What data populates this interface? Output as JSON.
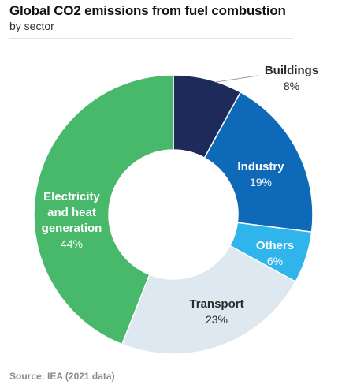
{
  "title": "Global CO2 emissions from fuel combustion",
  "subtitle": "by sector",
  "source": "Source: IEA (2021 data)",
  "chart_data": {
    "type": "pie",
    "donut": true,
    "title": "Global CO2 emissions from fuel combustion",
    "subtitle": "by sector",
    "unit": "%",
    "legend": "none",
    "slices": [
      {
        "label": "Buildings",
        "lines": [
          "Buildings"
        ],
        "value": 8,
        "display": "8%",
        "color": "#1e2a5a",
        "label_color": "#2b2b2b"
      },
      {
        "label": "Industry",
        "lines": [
          "Industry"
        ],
        "value": 19,
        "display": "19%",
        "color": "#0e69b8",
        "label_color": "#ffffff"
      },
      {
        "label": "Others",
        "lines": [
          "Others"
        ],
        "value": 6,
        "display": "6%",
        "color": "#2fb4ec",
        "label_color": "#ffffff"
      },
      {
        "label": "Transport",
        "lines": [
          "Transport"
        ],
        "value": 23,
        "display": "23%",
        "color": "#dde8f0",
        "label_color": "#2b2b2b"
      },
      {
        "label": "Electricity and heat generation",
        "lines": [
          "Electricity",
          "and heat",
          "generation"
        ],
        "value": 44,
        "display": "44%",
        "color": "#48b96a",
        "label_color": "#ffffff"
      }
    ]
  }
}
